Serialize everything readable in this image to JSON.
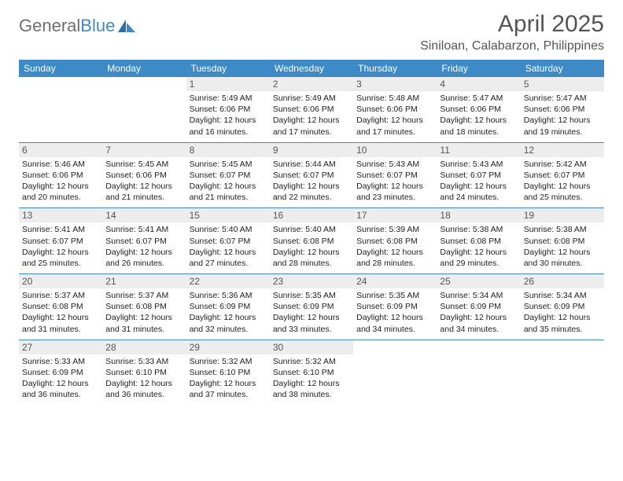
{
  "logo": {
    "word1": "General",
    "word2": "Blue"
  },
  "title": "April 2025",
  "location": "Siniloan, Calabarzon, Philippines",
  "colors": {
    "header_bg": "#3d8ac7",
    "header_text": "#ffffff",
    "daynum_bg": "#ededed",
    "border": "#3d8ac7",
    "title_color": "#555555",
    "logo_gray": "#6f6f6f",
    "logo_blue": "#3d8ac7"
  },
  "day_labels": [
    "Sunday",
    "Monday",
    "Tuesday",
    "Wednesday",
    "Thursday",
    "Friday",
    "Saturday"
  ],
  "weeks": [
    [
      null,
      null,
      {
        "n": "1",
        "sr": "5:49 AM",
        "ss": "6:06 PM",
        "dl": "12 hours and 16 minutes."
      },
      {
        "n": "2",
        "sr": "5:49 AM",
        "ss": "6:06 PM",
        "dl": "12 hours and 17 minutes."
      },
      {
        "n": "3",
        "sr": "5:48 AM",
        "ss": "6:06 PM",
        "dl": "12 hours and 17 minutes."
      },
      {
        "n": "4",
        "sr": "5:47 AM",
        "ss": "6:06 PM",
        "dl": "12 hours and 18 minutes."
      },
      {
        "n": "5",
        "sr": "5:47 AM",
        "ss": "6:06 PM",
        "dl": "12 hours and 19 minutes."
      }
    ],
    [
      {
        "n": "6",
        "sr": "5:46 AM",
        "ss": "6:06 PM",
        "dl": "12 hours and 20 minutes."
      },
      {
        "n": "7",
        "sr": "5:45 AM",
        "ss": "6:06 PM",
        "dl": "12 hours and 21 minutes."
      },
      {
        "n": "8",
        "sr": "5:45 AM",
        "ss": "6:07 PM",
        "dl": "12 hours and 21 minutes."
      },
      {
        "n": "9",
        "sr": "5:44 AM",
        "ss": "6:07 PM",
        "dl": "12 hours and 22 minutes."
      },
      {
        "n": "10",
        "sr": "5:43 AM",
        "ss": "6:07 PM",
        "dl": "12 hours and 23 minutes."
      },
      {
        "n": "11",
        "sr": "5:43 AM",
        "ss": "6:07 PM",
        "dl": "12 hours and 24 minutes."
      },
      {
        "n": "12",
        "sr": "5:42 AM",
        "ss": "6:07 PM",
        "dl": "12 hours and 25 minutes."
      }
    ],
    [
      {
        "n": "13",
        "sr": "5:41 AM",
        "ss": "6:07 PM",
        "dl": "12 hours and 25 minutes."
      },
      {
        "n": "14",
        "sr": "5:41 AM",
        "ss": "6:07 PM",
        "dl": "12 hours and 26 minutes."
      },
      {
        "n": "15",
        "sr": "5:40 AM",
        "ss": "6:07 PM",
        "dl": "12 hours and 27 minutes."
      },
      {
        "n": "16",
        "sr": "5:40 AM",
        "ss": "6:08 PM",
        "dl": "12 hours and 28 minutes."
      },
      {
        "n": "17",
        "sr": "5:39 AM",
        "ss": "6:08 PM",
        "dl": "12 hours and 28 minutes."
      },
      {
        "n": "18",
        "sr": "5:38 AM",
        "ss": "6:08 PM",
        "dl": "12 hours and 29 minutes."
      },
      {
        "n": "19",
        "sr": "5:38 AM",
        "ss": "6:08 PM",
        "dl": "12 hours and 30 minutes."
      }
    ],
    [
      {
        "n": "20",
        "sr": "5:37 AM",
        "ss": "6:08 PM",
        "dl": "12 hours and 31 minutes."
      },
      {
        "n": "21",
        "sr": "5:37 AM",
        "ss": "6:08 PM",
        "dl": "12 hours and 31 minutes."
      },
      {
        "n": "22",
        "sr": "5:36 AM",
        "ss": "6:09 PM",
        "dl": "12 hours and 32 minutes."
      },
      {
        "n": "23",
        "sr": "5:35 AM",
        "ss": "6:09 PM",
        "dl": "12 hours and 33 minutes."
      },
      {
        "n": "24",
        "sr": "5:35 AM",
        "ss": "6:09 PM",
        "dl": "12 hours and 34 minutes."
      },
      {
        "n": "25",
        "sr": "5:34 AM",
        "ss": "6:09 PM",
        "dl": "12 hours and 34 minutes."
      },
      {
        "n": "26",
        "sr": "5:34 AM",
        "ss": "6:09 PM",
        "dl": "12 hours and 35 minutes."
      }
    ],
    [
      {
        "n": "27",
        "sr": "5:33 AM",
        "ss": "6:09 PM",
        "dl": "12 hours and 36 minutes."
      },
      {
        "n": "28",
        "sr": "5:33 AM",
        "ss": "6:10 PM",
        "dl": "12 hours and 36 minutes."
      },
      {
        "n": "29",
        "sr": "5:32 AM",
        "ss": "6:10 PM",
        "dl": "12 hours and 37 minutes."
      },
      {
        "n": "30",
        "sr": "5:32 AM",
        "ss": "6:10 PM",
        "dl": "12 hours and 38 minutes."
      },
      null,
      null,
      null
    ]
  ],
  "labels": {
    "sunrise": "Sunrise:",
    "sunset": "Sunset:",
    "daylight": "Daylight:"
  }
}
